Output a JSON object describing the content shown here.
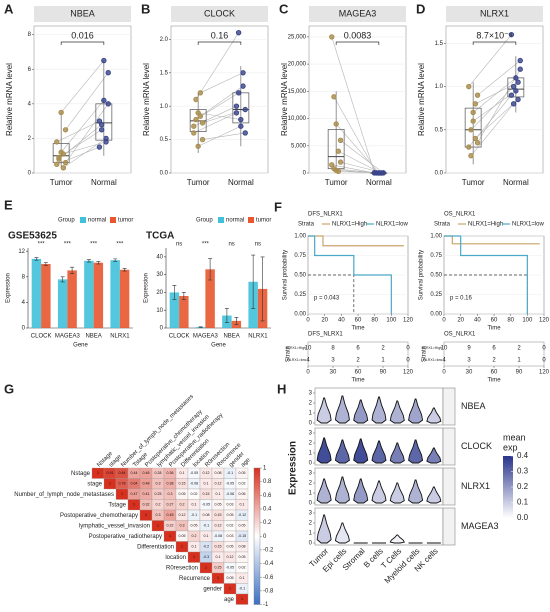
{
  "chart_data": [
    {
      "type": "box",
      "panel": "A",
      "title": "NBEA",
      "y_label": "Relative mRNA level",
      "p_label": "0.016",
      "categories": [
        "Tumor",
        "Normal"
      ],
      "groups": [
        {
          "color": "#a88d4e",
          "values": [
            0.5,
            0.8,
            1.2,
            0.3,
            2.5,
            1.8,
            0.9,
            3.5,
            1.1,
            0.6
          ],
          "q1": 0.6,
          "median": 1.0,
          "q3": 1.7,
          "low": 0.3,
          "high": 3.5
        },
        {
          "color": "#3b4689",
          "values": [
            1.5,
            2.8,
            4.2,
            2.0,
            5.8,
            3.0,
            2.5,
            6.5,
            1.8,
            4.0
          ],
          "q1": 1.9,
          "median": 2.9,
          "q3": 4.0,
          "low": 1.0,
          "high": 6.5
        }
      ],
      "ylim": [
        0,
        8.5
      ],
      "yticks": [
        0,
        2,
        4,
        6,
        8
      ]
    },
    {
      "type": "box",
      "panel": "B",
      "title": "CLOCK",
      "y_label": "Relative mRNA level",
      "p_label": "0.16",
      "categories": [
        "Tumor",
        "Normal"
      ],
      "groups": [
        {
          "color": "#a88d4e",
          "values": [
            0.6,
            0.8,
            0.9,
            1.2,
            0.5,
            0.7,
            1.1,
            0.4,
            0.85,
            0.75
          ],
          "q1": 0.62,
          "median": 0.78,
          "q3": 0.95,
          "low": 0.3,
          "high": 1.2
        },
        {
          "color": "#3b4689",
          "values": [
            0.9,
            1.2,
            0.8,
            1.5,
            0.6,
            1.0,
            2.1,
            0.7,
            1.3,
            0.95
          ],
          "q1": 0.75,
          "median": 0.95,
          "q3": 1.2,
          "low": 0.4,
          "high": 1.6
        }
      ],
      "ylim": [
        0,
        2.2
      ],
      "yticks": [
        {
          "value": 0,
          "label": "0.0"
        },
        0.5,
        {
          "value": 1,
          "label": "1.0"
        },
        1.5,
        {
          "value": 2,
          "label": "2.0"
        }
      ]
    },
    {
      "type": "box",
      "panel": "C",
      "title": "MAGEA3",
      "y_label": "Relative mRNA level",
      "p_label": "0.0083",
      "categories": [
        "Tumor",
        "Normal"
      ],
      "groups": [
        {
          "color": "#a88d4e",
          "values": [
            25000,
            14000,
            9000,
            4000,
            2000,
            1500,
            800,
            500,
            300,
            6000
          ],
          "q1": 800,
          "median": 3000,
          "q3": 8000,
          "low": 0,
          "high": 15000
        },
        {
          "color": "#3b4689",
          "values": [
            50,
            20,
            10,
            0,
            30,
            5,
            15,
            0,
            10,
            5
          ],
          "q1": 5,
          "median": 10,
          "q3": 20,
          "low": 0,
          "high": 50
        }
      ],
      "ylim": [
        0,
        27000
      ],
      "yticks": [
        0,
        {
          "value": 5000,
          "label": "5,000"
        },
        {
          "value": 10000,
          "label": "10,000"
        },
        {
          "value": 15000,
          "label": "15,000"
        },
        {
          "value": 20000,
          "label": "20,000"
        },
        {
          "value": 25000,
          "label": "25,000"
        }
      ]
    },
    {
      "type": "box",
      "panel": "D",
      "title": "NLRX1",
      "y_label": "Relative mRNA level",
      "p_label": "8.7×10⁻⁵",
      "categories": [
        "Tumor",
        "Normal"
      ],
      "groups": [
        {
          "color": "#a88d4e",
          "values": [
            0.3,
            0.5,
            0.7,
            0.4,
            0.9,
            1.0,
            0.2,
            0.6,
            0.8,
            0.35
          ],
          "q1": 0.3,
          "median": 0.5,
          "q3": 0.75,
          "low": 0.1,
          "high": 1.05
        },
        {
          "color": "#3b4689",
          "values": [
            0.9,
            1.0,
            1.1,
            0.85,
            1.3,
            1.6,
            0.8,
            0.95,
            1.05,
            1.2
          ],
          "q1": 0.88,
          "median": 0.97,
          "q3": 1.1,
          "low": 0.7,
          "high": 1.35
        }
      ],
      "ylim": [
        0,
        1.7
      ],
      "yticks": [
        {
          "value": 0,
          "label": "0.0"
        },
        0.5,
        {
          "value": 1,
          "label": "1.0"
        },
        1.5
      ]
    },
    {
      "type": "bar",
      "panel": "E",
      "title": "GSE53625",
      "legend_title": "Group",
      "y_label": "Expression",
      "x_label": "Gene",
      "categories": [
        "CLOCK",
        "MAGEA3",
        "NBEA",
        "NLRX1"
      ],
      "series": [
        {
          "name": "normal",
          "color": "#3fc1d9",
          "values": [
            10.8,
            7.6,
            10.5,
            10.6
          ],
          "errors": [
            0.2,
            0.4,
            0.2,
            0.2
          ]
        },
        {
          "name": "tumor",
          "color": "#e8572f",
          "values": [
            10.0,
            9.0,
            10.2,
            9.1
          ],
          "errors": [
            0.2,
            0.5,
            0.2,
            0.2
          ]
        }
      ],
      "significance": [
        "***",
        "***",
        "***",
        "***"
      ],
      "ylim": [
        0,
        12.5
      ],
      "yticks": [
        0,
        4,
        8,
        12
      ]
    },
    {
      "type": "bar",
      "title": "TCGA",
      "legend_title": "Group",
      "y_label": "Expression",
      "x_label": "Gene",
      "categories": [
        "CLOCK",
        "MAGEA3",
        "NBEA",
        "NLRX1"
      ],
      "series": [
        {
          "name": "normal",
          "color": "#3fc1d9",
          "values": [
            20,
            0.5,
            7,
            26
          ],
          "errors": [
            4,
            0.2,
            4,
            15
          ]
        },
        {
          "name": "tumor",
          "color": "#e8572f",
          "values": [
            18,
            33,
            4,
            22
          ],
          "errors": [
            2,
            6,
            2,
            18
          ]
        }
      ],
      "significance": [
        "ns",
        "***",
        "ns",
        "ns"
      ],
      "ylim": [
        0,
        45
      ],
      "yticks": [
        0,
        10,
        20,
        30,
        40
      ]
    },
    {
      "type": "km",
      "panel": "F",
      "title": "DFS_NLRX1",
      "legend_title": "Strata",
      "y_label": "Survival probability",
      "x_label": "Time",
      "p_label": "p = 0.043",
      "series": [
        {
          "name": "NLRX1=High",
          "color": "#c9a46a",
          "times": [
            0,
            18,
            115
          ],
          "surv": [
            1,
            0.875,
            0.875
          ],
          "at_risk": [
            10,
            8,
            6,
            2,
            0
          ]
        },
        {
          "name": "NLRX1=low",
          "color": "#4aa8c8",
          "times": [
            0,
            8,
            55,
            100
          ],
          "surv": [
            1,
            0.75,
            0.5,
            0
          ],
          "at_risk": [
            4,
            3,
            2,
            1,
            0
          ]
        }
      ],
      "median": {
        "x": 55,
        "y": 0.5
      },
      "xlim": [
        0,
        120
      ],
      "xticks": [
        0,
        20,
        40,
        60,
        80,
        100,
        120
      ],
      "ylim": [
        0,
        1
      ],
      "yticks": [
        {
          "value": 0,
          "label": "0.00"
        },
        0.25,
        {
          "value": 0.5,
          "label": "0.50"
        },
        0.75,
        {
          "value": 1,
          "label": "1.00"
        }
      ],
      "risk_xticks": [
        0,
        30,
        60,
        90,
        120
      ]
    },
    {
      "type": "km",
      "title": "OS_NLRX1",
      "legend_title": "Strata",
      "y_label": "Survival probability",
      "x_label": "Time",
      "p_label": "p = 0.16",
      "series": [
        {
          "name": "NLRX1=High",
          "color": "#c9a46a",
          "times": [
            0,
            10,
            115
          ],
          "surv": [
            1,
            0.9,
            0.9
          ],
          "at_risk": [
            10,
            9,
            6,
            2,
            0
          ]
        },
        {
          "name": "NLRX1=low",
          "color": "#4aa8c8",
          "times": [
            0,
            20,
            100
          ],
          "surv": [
            1,
            0.75,
            0
          ],
          "at_risk": [
            4,
            3,
            2,
            1,
            0
          ]
        }
      ],
      "median": {
        "x": 100,
        "y": 0.5
      },
      "xlim": [
        0,
        120
      ],
      "xticks": [
        0,
        20,
        40,
        60,
        80,
        100,
        120
      ],
      "ylim": [
        0,
        1
      ],
      "yticks": [
        {
          "value": 0,
          "label": "0.00"
        },
        0.25,
        {
          "value": 0.5,
          "label": "0.50"
        },
        0.75,
        {
          "value": 1,
          "label": "1.00"
        }
      ],
      "risk_xticks": [
        0,
        30,
        60,
        90,
        120
      ]
    },
    {
      "type": "corr",
      "panel": "G",
      "variables": [
        "Nstage",
        "stage",
        "Number_of_lymph_node_metastases",
        "Tstage",
        "Postoperative_chemotherapy",
        "lymphatic_vessel_invasion",
        "Postoperative_radiotherapy",
        "Differentiation",
        "location",
        "R0resection",
        "Recurrence",
        "gender",
        "age"
      ],
      "matrix": [
        [
          1,
          0.91,
          0.84,
          0.44,
          0.46,
          0.28,
          0.36,
          0.1,
          -0.05,
          0.12,
          0.08,
          -0.1,
          0.05
        ],
        [
          1,
          0.78,
          0.64,
          0.48,
          0.3,
          0.38,
          0.15,
          -0.08,
          0.1,
          0.12,
          -0.05,
          0.02
        ],
        [
          1,
          0.47,
          0.41,
          0.25,
          0.3,
          0.05,
          0.02,
          0.15,
          0.1,
          -0.08,
          0.06
        ],
        [
          1,
          0.32,
          0.2,
          0.27,
          0.2,
          0.1,
          -0.05,
          0.05,
          0.03,
          0.1
        ],
        [
          1,
          0.3,
          0.45,
          0.12,
          -0.1,
          0.08,
          0.15,
          0.05,
          -0.12
        ],
        [
          1,
          0.22,
          0.3,
          0.05,
          -0.1,
          0.12,
          0.02,
          0.05
        ],
        [
          1,
          0.05,
          0.2,
          0.1,
          -0.08,
          0.03,
          -0.15
        ],
        [
          1,
          0.1,
          -0.2,
          0.15,
          0.05,
          0.08
        ],
        [
          1,
          -0.3,
          0.1,
          0.12,
          0.05
        ],
        [
          1,
          0.25,
          -0.05,
          0.02
        ],
        [
          1,
          0.05,
          0.1
        ],
        [
          1,
          -0.1
        ],
        [
          1
        ]
      ],
      "colors": {
        "positive": "#d7301f",
        "negative": "#3b6fc2"
      },
      "clim": [
        -1,
        1
      ],
      "cticks": [
        1,
        0.8,
        0.6,
        0.4,
        0.2,
        0,
        -0.2,
        -0.4,
        -0.6,
        -0.8,
        -1
      ]
    },
    {
      "type": "violin",
      "panel": "H",
      "y_label": "Expression",
      "legend_title": [
        "mean",
        "exp"
      ],
      "genes": [
        "NBEA",
        "CLOCK",
        "NLRX1",
        "MAGEA3"
      ],
      "cells": [
        "Tumor",
        "Epi cells",
        "Stromal",
        "B cells",
        "T Cells",
        "Myeloid cells",
        "NK cells"
      ],
      "max": [
        [
          2.5,
          2.7,
          2.3,
          2.6,
          2.2,
          2.4,
          1.5
        ],
        [
          2.5,
          2.3,
          2.4,
          2.2,
          2.0,
          2.3,
          1.5
        ],
        [
          2.4,
          2.6,
          2.4,
          2.2,
          2.0,
          2.3,
          1.6
        ],
        [
          2.8,
          2.0,
          0,
          0,
          0.8,
          0,
          0
        ]
      ],
      "mean_exp": [
        [
          0.1,
          0.15,
          0.2,
          0.15,
          0.15,
          0.18,
          0.1
        ],
        [
          0.35,
          0.3,
          0.35,
          0.3,
          0.25,
          0.3,
          0.25
        ],
        [
          0.15,
          0.15,
          0.2,
          0.1,
          0.1,
          0.15,
          0.1
        ],
        [
          0.1,
          0.05,
          0,
          0,
          0.02,
          0,
          0
        ]
      ],
      "color": "#27348b",
      "ylim": [
        0,
        3.2
      ],
      "yticks": [
        0,
        1,
        2,
        3
      ],
      "clim": [
        0,
        0.4
      ],
      "cticks": [
        {
          "value": 0,
          "label": "0.0"
        },
        0.1,
        0.2,
        0.3,
        0.4
      ]
    }
  ]
}
